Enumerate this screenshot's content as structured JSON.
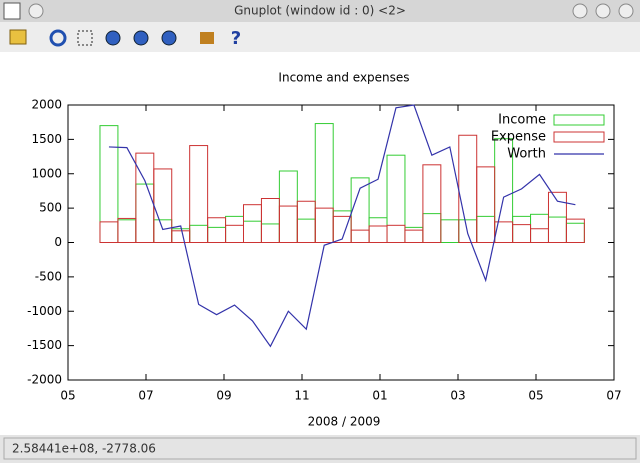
{
  "window": {
    "title": "Gnuplot (window id : 0) <2>",
    "status": "2.58441e+08, -2778.06"
  },
  "chart_data": {
    "type": "bar",
    "title": "Income and expenses",
    "xlabel": "2008 / 2009",
    "x": [
      1.05,
      1.51,
      1.97,
      2.43,
      2.89,
      3.35,
      3.81,
      4.27,
      4.73,
      5.19,
      5.65,
      6.11,
      6.57,
      7.03,
      7.49,
      7.95,
      8.41,
      8.87,
      9.33,
      9.79,
      10.25,
      10.71,
      11.17,
      11.63,
      12.09,
      12.55,
      13.01
    ],
    "series": [
      {
        "name": "Income",
        "type": "bar",
        "color": "#33cc33",
        "values": [
          1700,
          330,
          850,
          330,
          200,
          250,
          220,
          380,
          310,
          270,
          1040,
          340,
          1730,
          460,
          940,
          360,
          1270,
          220,
          420,
          330,
          330,
          380,
          1510,
          380,
          410,
          370,
          280
        ]
      },
      {
        "name": "Expense",
        "type": "bar",
        "color": "#cc3333",
        "values": [
          300,
          350,
          1300,
          1070,
          170,
          1410,
          360,
          250,
          550,
          640,
          530,
          600,
          500,
          380,
          180,
          240,
          250,
          180,
          1130,
          0,
          1560,
          1100,
          300,
          260,
          200,
          730,
          340
        ]
      },
      {
        "name": "Worth",
        "type": "line",
        "color": "#3333aa",
        "values": [
          1390,
          1380,
          900,
          190,
          240,
          -900,
          -1050,
          -910,
          -1140,
          -1510,
          -1000,
          -1260,
          -40,
          50,
          790,
          920,
          1960,
          2000,
          1270,
          1390,
          130,
          -550,
          660,
          780,
          990,
          600,
          550
        ]
      }
    ],
    "xlim": [
      0,
      14
    ],
    "xticks": [
      {
        "value": 0,
        "label": "05"
      },
      {
        "value": 2,
        "label": "07"
      },
      {
        "value": 4,
        "label": "09"
      },
      {
        "value": 6,
        "label": "11"
      },
      {
        "value": 8,
        "label": "01"
      },
      {
        "value": 10,
        "label": "03"
      },
      {
        "value": 12,
        "label": "05"
      },
      {
        "value": 14,
        "label": "07"
      }
    ],
    "ylim": [
      -2000,
      2000
    ],
    "yticks": [
      -2000,
      -1500,
      -1000,
      -500,
      0,
      500,
      1000,
      1500,
      2000
    ],
    "legend": "top-right"
  }
}
